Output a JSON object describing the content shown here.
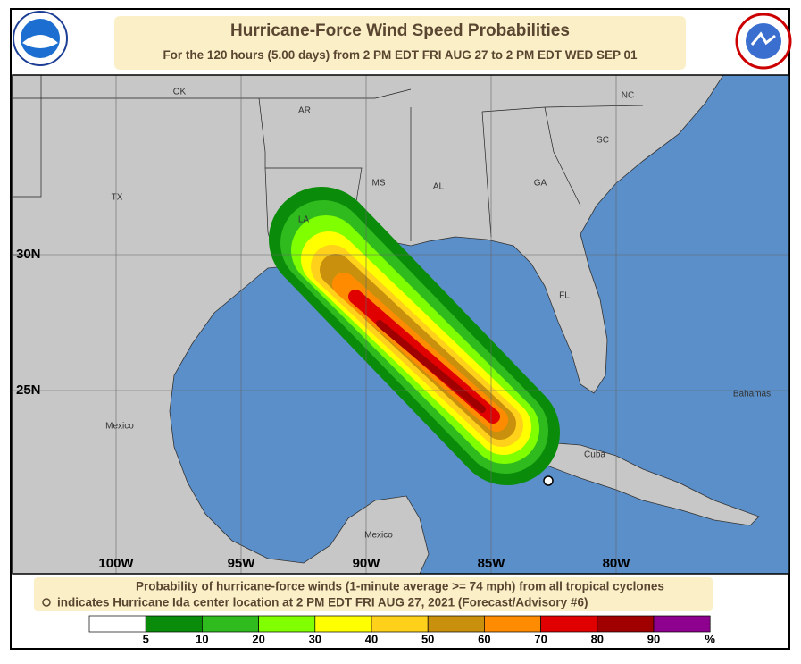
{
  "header": {
    "title": "Hurricane-Force Wind Speed Probabilities",
    "subtitle": "For the 120 hours (5.00 days) from 2 PM EDT FRI AUG 27 to 2 PM EDT WED SEP 01"
  },
  "map": {
    "labels": [
      "OK",
      "AR",
      "MS",
      "AL",
      "GA",
      "SC",
      "NC",
      "TX",
      "LA",
      "FL",
      "Mexico",
      "Mexico",
      "Cuba",
      "Bahamas"
    ],
    "lat_labels": [
      "30N",
      "25N"
    ],
    "lon_labels": [
      "100W",
      "95W",
      "90W",
      "85W",
      "80W"
    ]
  },
  "footer": {
    "line1": "Probability of hurricane-force winds (1-minute average >= 74 mph) from all tropical cyclones",
    "line2": "indicates Hurricane Ida center location at 2 PM EDT FRI AUG 27, 2021 (Forecast/Advisory #6)"
  },
  "legend": {
    "colors": [
      "#ffffff",
      "#0a8c0a",
      "#2fba1e",
      "#80ff00",
      "#ffff00",
      "#ffd11a",
      "#c8900d",
      "#ff8c00",
      "#e10000",
      "#a00000",
      "#8e008e"
    ],
    "ticks": [
      5,
      10,
      20,
      30,
      40,
      50,
      60,
      70,
      80,
      90
    ],
    "unit": "%"
  }
}
